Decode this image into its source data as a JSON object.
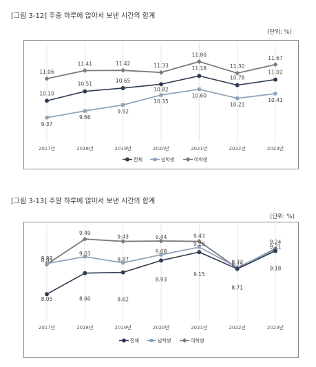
{
  "colors": {
    "total": "#2f3b52",
    "male": "#8fa3ba",
    "female": "#7b7b7b",
    "frame": "#888888",
    "grid": "#e4e4e4"
  },
  "chart_data": [
    {
      "type": "line",
      "title": "[그림 3-12] 주중 하루에 앉아서 보낸 시간의 합계",
      "unit": "(단위: %)",
      "x": [
        "2017년",
        "2018년",
        "2019년",
        "2020년",
        "2021년",
        "2022년",
        "2023년"
      ],
      "ylim": [
        8.5,
        12.5
      ],
      "series": [
        {
          "name": "전체",
          "key": "total",
          "values": [
            10.1,
            10.51,
            10.65,
            10.82,
            11.18,
            10.78,
            11.02
          ]
        },
        {
          "name": "남학생",
          "key": "male",
          "values": [
            9.37,
            9.66,
            9.92,
            10.35,
            10.6,
            10.21,
            10.41
          ]
        },
        {
          "name": "여학생",
          "key": "female",
          "values": [
            11.06,
            11.41,
            11.42,
            11.33,
            11.8,
            11.3,
            11.67
          ]
        }
      ],
      "legend": "bottom"
    },
    {
      "type": "line",
      "title": "[그림 3-13] 주말 하루에 앉아서 보낸 시간의 합계",
      "unit": "(단위: %)",
      "x": [
        "2017년",
        "2018년",
        "2019년",
        "2020년",
        "2021년",
        "2022년",
        "2023년"
      ],
      "ylim": [
        8.0,
        9.8
      ],
      "series": [
        {
          "name": "전체",
          "key": "total",
          "values": [
            8.05,
            8.6,
            8.62,
            8.93,
            9.15,
            8.71,
            9.18
          ]
        },
        {
          "name": "남학생",
          "key": "male",
          "values": [
            8.85,
            9.03,
            8.87,
            9.08,
            9.28,
            8.75,
            9.21
          ]
        },
        {
          "name": "여학생",
          "key": "female",
          "values": [
            8.83,
            9.49,
            9.43,
            9.44,
            9.43,
            8.73,
            9.24
          ]
        }
      ],
      "legend": "bottom"
    }
  ]
}
